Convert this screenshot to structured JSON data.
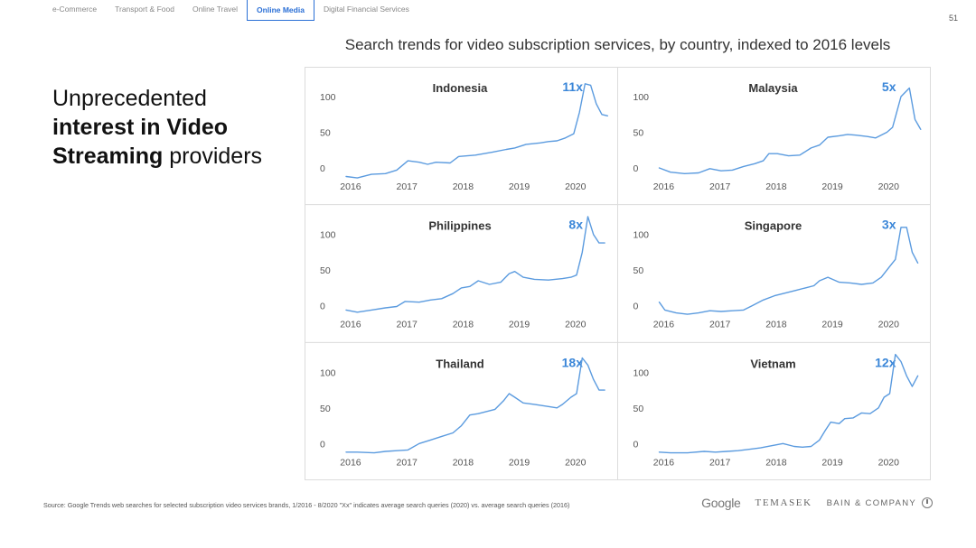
{
  "nav": {
    "tabs": [
      {
        "label": "e-Commerce",
        "active": false
      },
      {
        "label": "Transport & Food",
        "active": false
      },
      {
        "label": "Online Travel",
        "active": false
      },
      {
        "label": "Online Media",
        "active": true
      },
      {
        "label": "Digital Financial Services",
        "active": false
      }
    ]
  },
  "page_number": "51",
  "headline": {
    "line1": "Unprecedented",
    "line2_bold": "interest in Video",
    "line3_bold": "Streaming",
    "line3_rest": " providers"
  },
  "footer": {
    "source": "Source: Google Trends web searches for selected subscription video services brands, 1/2016 - 8/2020 \"Xx\" indicates average search queries (2020) vs. average search queries (2016)"
  },
  "logos": {
    "google": "Google",
    "temasek": "TEMASEK",
    "bain": "BAIN & COMPANY"
  },
  "colors": {
    "line": "#5b9bdf",
    "multiplier": "#3a86d8",
    "axis_text": "#555555"
  },
  "chart_data": {
    "type": "line",
    "title": "Search trends for video subscription services, by country, indexed to 2016 levels",
    "xticks": [
      "2016",
      "2017",
      "2018",
      "2019",
      "2020"
    ],
    "yticks": [
      "0",
      "50",
      "100"
    ],
    "x_range": [
      2016,
      2020.67
    ],
    "panels": [
      {
        "name": "Indonesia",
        "multiplier": "11x",
        "x": [
          2016.0,
          2016.2,
          2016.45,
          2016.7,
          2016.9,
          2017.1,
          2017.3,
          2017.45,
          2017.6,
          2017.85,
          2018.0,
          2018.3,
          2018.6,
          2018.85,
          2019.0,
          2019.2,
          2019.45,
          2019.6,
          2019.75,
          2019.9,
          2020.05,
          2020.15,
          2020.25,
          2020.35,
          2020.45,
          2020.55,
          2020.65
        ],
        "y": [
          -12,
          -14,
          -9,
          -8,
          -3,
          10,
          8,
          5,
          8,
          7,
          16,
          18,
          22,
          26,
          28,
          33,
          35,
          37,
          38,
          42,
          48,
          78,
          118,
          116,
          90,
          75,
          73
        ]
      },
      {
        "name": "Malaysia",
        "multiplier": "5x",
        "x": [
          2016.0,
          2016.2,
          2016.45,
          2016.7,
          2016.9,
          2017.1,
          2017.3,
          2017.5,
          2017.7,
          2017.85,
          2017.95,
          2018.1,
          2018.3,
          2018.5,
          2018.7,
          2018.85,
          2019.0,
          2019.2,
          2019.35,
          2019.5,
          2019.7,
          2019.85,
          2020.05,
          2020.15,
          2020.3,
          2020.45,
          2020.55,
          2020.65
        ],
        "y": [
          0,
          -6,
          -8,
          -7,
          -1,
          -4,
          -3,
          2,
          6,
          10,
          20,
          20,
          17,
          18,
          28,
          32,
          43,
          45,
          47,
          46,
          44,
          42,
          50,
          57,
          100,
          112,
          68,
          54
        ]
      },
      {
        "name": "Philippines",
        "multiplier": "8x",
        "x": [
          2016.0,
          2016.2,
          2016.45,
          2016.7,
          2016.9,
          2017.05,
          2017.3,
          2017.5,
          2017.7,
          2017.9,
          2018.05,
          2018.2,
          2018.35,
          2018.55,
          2018.75,
          2018.9,
          2019.0,
          2019.15,
          2019.35,
          2019.6,
          2019.85,
          2020.0,
          2020.1,
          2020.2,
          2020.3,
          2020.4,
          2020.5,
          2020.6
        ],
        "y": [
          -6,
          -9,
          -6,
          -3,
          -1,
          6,
          5,
          8,
          10,
          17,
          25,
          27,
          35,
          30,
          33,
          45,
          48,
          40,
          37,
          36,
          38,
          40,
          43,
          75,
          125,
          100,
          88,
          88
        ]
      },
      {
        "name": "Singapore",
        "multiplier": "3x",
        "x": [
          2016.0,
          2016.1,
          2016.3,
          2016.5,
          2016.7,
          2016.9,
          2017.1,
          2017.3,
          2017.5,
          2017.65,
          2017.85,
          2018.05,
          2018.25,
          2018.45,
          2018.6,
          2018.75,
          2018.85,
          2019.0,
          2019.2,
          2019.4,
          2019.6,
          2019.8,
          2019.95,
          2020.1,
          2020.2,
          2020.3,
          2020.4,
          2020.5,
          2020.6
        ],
        "y": [
          5,
          -6,
          -10,
          -12,
          -10,
          -7,
          -8,
          -7,
          -6,
          0,
          8,
          14,
          18,
          22,
          25,
          28,
          35,
          40,
          33,
          32,
          30,
          32,
          40,
          55,
          65,
          110,
          110,
          75,
          60
        ]
      },
      {
        "name": "Thailand",
        "multiplier": "18x",
        "x": [
          2016.0,
          2016.2,
          2016.5,
          2016.7,
          2016.9,
          2017.1,
          2017.3,
          2017.5,
          2017.7,
          2017.9,
          2018.05,
          2018.2,
          2018.35,
          2018.5,
          2018.65,
          2018.8,
          2018.9,
          2019.0,
          2019.15,
          2019.35,
          2019.6,
          2019.75,
          2019.85,
          2020.0,
          2020.1,
          2020.2,
          2020.3,
          2020.4,
          2020.5,
          2020.6
        ],
        "y": [
          -12,
          -12,
          -13,
          -11,
          -10,
          -9,
          0,
          5,
          10,
          15,
          25,
          40,
          42,
          45,
          48,
          60,
          70,
          65,
          57,
          55,
          52,
          50,
          55,
          65,
          70,
          120,
          110,
          90,
          75,
          75
        ]
      },
      {
        "name": "Vietnam",
        "multiplier": "12x",
        "x": [
          2016.0,
          2016.2,
          2016.5,
          2016.8,
          2017.0,
          2017.2,
          2017.4,
          2017.6,
          2017.8,
          2018.0,
          2018.2,
          2018.4,
          2018.55,
          2018.7,
          2018.85,
          2018.95,
          2019.05,
          2019.2,
          2019.3,
          2019.45,
          2019.6,
          2019.75,
          2019.9,
          2020.0,
          2020.1,
          2020.2,
          2020.3,
          2020.4,
          2020.5,
          2020.6
        ],
        "y": [
          -12,
          -13,
          -13,
          -11,
          -12,
          -11,
          -10,
          -8,
          -6,
          -3,
          0,
          -4,
          -5,
          -4,
          5,
          18,
          30,
          28,
          35,
          36,
          43,
          42,
          50,
          65,
          70,
          125,
          115,
          95,
          80,
          95
        ]
      }
    ]
  }
}
